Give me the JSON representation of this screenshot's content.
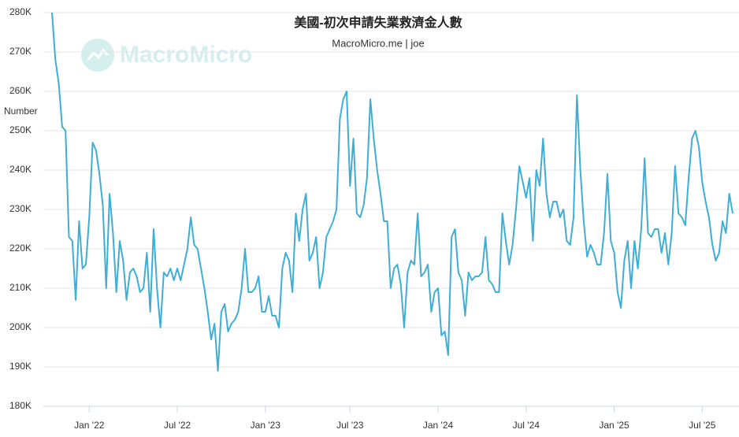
{
  "chart_data": {
    "type": "line",
    "title": "美國-初次申請失業救濟金人數",
    "subtitle": "MacroMicro.me | joe",
    "watermark": "MacroMicro",
    "y_label": "Number",
    "categories": [
      null,
      null,
      null,
      null,
      null,
      null,
      null,
      null,
      null,
      null,
      null,
      "Jan '22",
      null,
      null,
      null,
      null,
      null,
      null,
      null,
      null,
      null,
      null,
      null,
      null,
      null,
      null,
      null,
      null,
      null,
      null,
      null,
      null,
      null,
      null,
      null,
      null,
      null,
      "Jul '22",
      null,
      null,
      null,
      null,
      null,
      null,
      null,
      null,
      null,
      null,
      null,
      null,
      null,
      null,
      null,
      null,
      null,
      null,
      null,
      null,
      null,
      null,
      null,
      null,
      null,
      "Jan '23",
      null,
      null,
      null,
      null,
      null,
      null,
      null,
      null,
      null,
      null,
      null,
      null,
      null,
      null,
      null,
      null,
      null,
      null,
      null,
      null,
      null,
      null,
      null,
      null,
      "Jul '23",
      null,
      null,
      null,
      null,
      null,
      null,
      null,
      null,
      null,
      null,
      null,
      null,
      null,
      null,
      null,
      null,
      null,
      null,
      null,
      null,
      null,
      null,
      null,
      null,
      null,
      "Jan '24",
      null,
      null,
      null,
      null,
      null,
      null,
      null,
      null,
      null,
      null,
      null,
      null,
      null,
      null,
      null,
      null,
      null,
      null,
      null,
      null,
      null,
      null,
      null,
      null,
      null,
      "Jul '24",
      null,
      null,
      null,
      null,
      null,
      null,
      null,
      null,
      null,
      null,
      null,
      null,
      null,
      null,
      null,
      null,
      null,
      null,
      null,
      null,
      null,
      null,
      null,
      null,
      null,
      "Jan '25",
      null,
      null,
      null,
      null,
      null,
      null,
      null,
      null,
      null,
      null,
      null,
      null,
      null,
      null,
      null,
      null,
      null,
      null,
      null,
      null,
      null,
      null,
      null,
      null,
      null,
      "Jul '25",
      null,
      null,
      null,
      null,
      null,
      null,
      null,
      null,
      null
    ],
    "series": [
      {
        "name": "Number",
        "color": "#3eaed6",
        "values": [
          280000,
          268000,
          262000,
          251000,
          250000,
          223000,
          222000,
          207000,
          227000,
          215000,
          216000,
          228000,
          247000,
          245000,
          239000,
          231000,
          210000,
          234000,
          224000,
          209000,
          222000,
          217000,
          207000,
          214000,
          215000,
          213000,
          209000,
          210000,
          219000,
          204000,
          225000,
          210000,
          200000,
          214000,
          213000,
          215000,
          212000,
          215000,
          212000,
          216000,
          220000,
          228000,
          221000,
          220000,
          215000,
          210000,
          204000,
          197000,
          201000,
          189000,
          204000,
          206000,
          199000,
          201000,
          202000,
          204000,
          210000,
          220000,
          209000,
          209000,
          210000,
          213000,
          204000,
          204000,
          208000,
          203000,
          203000,
          200000,
          215000,
          219000,
          217000,
          209000,
          229000,
          222000,
          230000,
          234000,
          217000,
          219000,
          223000,
          210000,
          214000,
          223000,
          225000,
          227000,
          230000,
          253000,
          258000,
          260000,
          236000,
          248000,
          229000,
          228000,
          231000,
          238000,
          258000,
          248000,
          240000,
          234000,
          227000,
          227000,
          210000,
          215000,
          216000,
          211000,
          200000,
          214000,
          217000,
          216000,
          229000,
          213000,
          214000,
          216000,
          204000,
          209000,
          210000,
          198000,
          199000,
          193000,
          223000,
          225000,
          214000,
          212000,
          203000,
          214000,
          212000,
          213000,
          213000,
          214000,
          223000,
          212000,
          211000,
          209000,
          209000,
          229000,
          222000,
          216000,
          221000,
          230000,
          241000,
          237000,
          233000,
          238000,
          222000,
          240000,
          236000,
          248000,
          234000,
          228000,
          232000,
          232000,
          228000,
          230000,
          222000,
          221000,
          228000,
          259000,
          240000,
          227000,
          218000,
          221000,
          219000,
          216000,
          216000,
          224000,
          239000,
          222000,
          219000,
          209000,
          205000,
          217000,
          222000,
          210000,
          222000,
          215000,
          225000,
          243000,
          224000,
          223000,
          225000,
          225000,
          219000,
          224000,
          216000,
          224000,
          241000,
          229000,
          228000,
          226000,
          238000,
          248000,
          250000,
          246000,
          237000,
          232000,
          228000,
          221000,
          217000,
          219000,
          227000,
          224000,
          234000,
          229000
        ]
      }
    ],
    "ylim": [
      180000,
      280000
    ],
    "yticks": [
      {
        "value": 180000,
        "label": "180K"
      },
      {
        "value": 190000,
        "label": "190K"
      },
      {
        "value": 200000,
        "label": "200K"
      },
      {
        "value": 210000,
        "label": "210K"
      },
      {
        "value": 220000,
        "label": "220K"
      },
      {
        "value": 230000,
        "label": "230K"
      },
      {
        "value": 240000,
        "label": "240K"
      },
      {
        "value": 250000,
        "label": "250K"
      },
      {
        "value": 260000,
        "label": "260K"
      },
      {
        "value": 270000,
        "label": "270K"
      },
      {
        "value": 280000,
        "label": "280K"
      }
    ],
    "grid": true
  }
}
